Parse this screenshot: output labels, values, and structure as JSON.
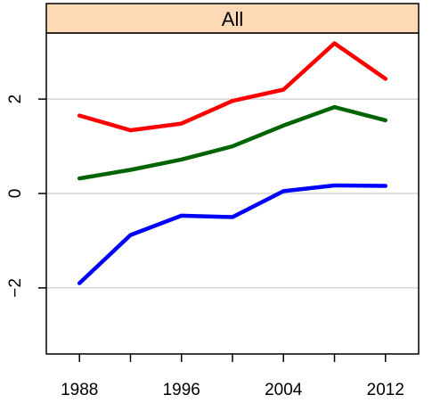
{
  "chart_data": {
    "type": "line",
    "title": "All",
    "xlabel": "",
    "ylabel": "",
    "xlim": [
      1985.4,
      2014.6
    ],
    "ylim": [
      -3.4,
      3.4
    ],
    "x_ticks": [
      1988,
      1992,
      1996,
      2000,
      2004,
      2008,
      2012
    ],
    "x_tick_labels": [
      "1988",
      "1996",
      "2004",
      "2012"
    ],
    "x_tick_label_values": [
      1988,
      1996,
      2004,
      2012
    ],
    "y_ticks": [
      -2,
      0,
      2
    ],
    "y_tick_labels": [
      "−2",
      "0",
      "2"
    ],
    "grid": "horizontal",
    "grid_values": [
      -2,
      0,
      2
    ],
    "colors": {
      "strip": "#fdd9b5",
      "grid": "#cccccc"
    },
    "x": [
      1988,
      1992,
      1996,
      2000,
      2004,
      2008,
      2012
    ],
    "series": [
      {
        "color": "#ff0000",
        "values": [
          1.65,
          1.34,
          1.48,
          1.96,
          2.2,
          3.18,
          2.43
        ]
      },
      {
        "color": "#006400",
        "values": [
          0.32,
          0.5,
          0.72,
          1.0,
          1.44,
          1.83,
          1.55
        ]
      },
      {
        "color": "#0000ff",
        "values": [
          -1.9,
          -0.88,
          -0.47,
          -0.5,
          0.05,
          0.17,
          0.16
        ]
      }
    ]
  }
}
